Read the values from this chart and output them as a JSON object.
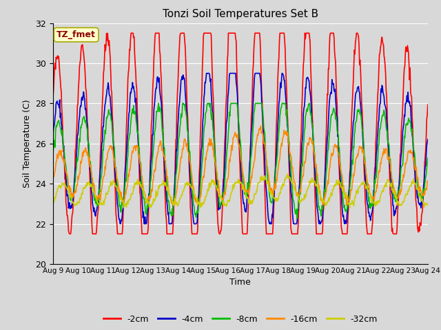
{
  "title": "Tonzi Soil Temperatures Set B",
  "xlabel": "Time",
  "ylabel": "Soil Temperature (C)",
  "ylim": [
    20,
    32
  ],
  "annotation": "TZ_fmet",
  "annotation_color": "#8B0000",
  "annotation_bg": "#FFFFCC",
  "annotation_edge": "#AAAA00",
  "bg_color": "#D8D8D8",
  "plot_bg": "#D8D8D8",
  "series_colors": [
    "#FF0000",
    "#0000CC",
    "#00BB00",
    "#FF8800",
    "#CCCC00"
  ],
  "series_labels": [
    "-2cm",
    "-4cm",
    "-8cm",
    "-16cm",
    "-32cm"
  ],
  "x_tick_labels": [
    "Aug 9",
    "Aug 10",
    "Aug 11",
    "Aug 12",
    "Aug 13",
    "Aug 14",
    "Aug 15",
    "Aug 16",
    "Aug 17",
    "Aug 18",
    "Aug 19",
    "Aug 20",
    "Aug 21",
    "Aug 22",
    "Aug 23",
    "Aug 24"
  ],
  "grid_color": "#FFFFFF",
  "line_width": 1.2
}
